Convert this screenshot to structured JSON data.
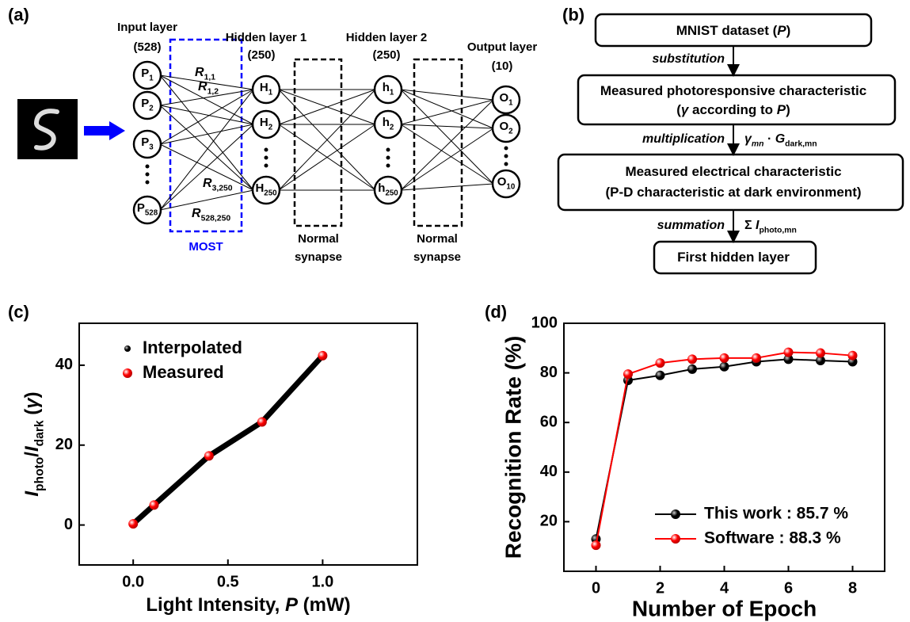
{
  "panel_a": {
    "label": "(a)",
    "layers": [
      {
        "name": "Input layer",
        "size": "(528)"
      },
      {
        "name": "Hidden layer 1",
        "size": "(250)"
      },
      {
        "name": "Hidden layer 2",
        "size": "(250)"
      },
      {
        "name": "Output layer",
        "size": "(10)"
      }
    ],
    "input_nodes": [
      [
        {
          "text": "P"
        },
        {
          "text": "1",
          "sub": true
        }
      ],
      [
        {
          "text": "P"
        },
        {
          "text": "2",
          "sub": true
        }
      ],
      [
        {
          "text": "P"
        },
        {
          "text": "3",
          "sub": true
        }
      ],
      [
        {
          "text": "P"
        },
        {
          "text": "528",
          "sub": true
        }
      ]
    ],
    "hidden1_nodes": [
      [
        {
          "text": "H"
        },
        {
          "text": "1",
          "sub": true
        }
      ],
      [
        {
          "text": "H"
        },
        {
          "text": "2",
          "sub": true
        }
      ],
      [
        {
          "text": "H"
        },
        {
          "text": "250",
          "sub": true
        }
      ]
    ],
    "hidden2_nodes": [
      [
        {
          "text": "h"
        },
        {
          "text": "1",
          "sub": true
        }
      ],
      [
        {
          "text": "h"
        },
        {
          "text": "2",
          "sub": true
        }
      ],
      [
        {
          "text": "h"
        },
        {
          "text": "250",
          "sub": true
        }
      ]
    ],
    "output_nodes": [
      [
        {
          "text": "O"
        },
        {
          "text": "1",
          "sub": true
        }
      ],
      [
        {
          "text": "O"
        },
        {
          "text": "2",
          "sub": true
        }
      ],
      [
        {
          "text": "O"
        },
        {
          "text": "10",
          "sub": true
        }
      ]
    ],
    "weights": [
      [
        {
          "text": "R",
          "italic": true
        },
        {
          "text": "1,1",
          "sub": true
        }
      ],
      [
        {
          "text": "R",
          "italic": true
        },
        {
          "text": "1,2",
          "sub": true
        }
      ],
      [
        {
          "text": "R",
          "italic": true
        },
        {
          "text": "3,250",
          "sub": true
        }
      ],
      [
        {
          "text": "R",
          "italic": true
        },
        {
          "text": "528,250",
          "sub": true
        }
      ]
    ],
    "most_label": "MOST",
    "synapse_labels": [
      [
        "Normal",
        "synapse"
      ],
      [
        "Normal",
        "synapse"
      ]
    ]
  },
  "panel_b": {
    "label": "(b)",
    "steps": [
      [
        [
          {
            "text": "MNIST dataset ("
          },
          {
            "text": "P",
            "italic": true
          },
          {
            "text": ")"
          }
        ]
      ],
      [
        [
          {
            "text": "Measured photoresponsive characteristic"
          }
        ],
        [
          {
            "text": "("
          },
          {
            "text": "γ",
            "italic": true
          },
          {
            "text": " according to "
          },
          {
            "text": "P",
            "italic": true
          },
          {
            "text": ")"
          }
        ]
      ],
      [
        [
          {
            "text": "Measured electrical characteristic"
          }
        ],
        [
          {
            "text": "(P-D characteristic at dark environment)"
          }
        ]
      ],
      [
        [
          {
            "text": "First hidden layer"
          }
        ]
      ]
    ],
    "arrows": [
      {
        "label": "substitution"
      },
      {
        "label": "multiplication",
        "formula": [
          {
            "text": "γ",
            "italic": true
          },
          {
            "text": "mn",
            "sub": true,
            "italic": true
          },
          {
            "text": " · "
          },
          {
            "text": "G",
            "italic": true
          },
          {
            "text": "dark,mn",
            "sub": true
          }
        ]
      },
      {
        "label": "summation",
        "formula": [
          {
            "text": "Σ "
          },
          {
            "text": "I",
            "italic": true
          },
          {
            "text": "photo,mn",
            "sub": true
          }
        ]
      }
    ]
  },
  "chart_data": [
    {
      "type": "line",
      "title": "(c)",
      "x": [
        0,
        0.11,
        0.4,
        0.68,
        1.0
      ],
      "series": [
        {
          "name": "Interpolated",
          "color": "#000000",
          "line": true,
          "values": [
            0.3,
            5,
            17.3,
            25.8,
            42.4
          ]
        },
        {
          "name": "Measured",
          "color": "#ff0000",
          "line": false,
          "values": [
            0.3,
            5,
            17.3,
            25.8,
            42.4
          ]
        }
      ],
      "xlabel": [
        {
          "text": "Light Intensity, "
        },
        {
          "text": "P",
          "italic": true
        },
        {
          "text": " (mW)"
        }
      ],
      "ylabel": [
        {
          "text": "I",
          "italic": true
        },
        {
          "text": "photo",
          "sub": true
        },
        {
          "text": "/"
        },
        {
          "text": "I",
          "italic": true
        },
        {
          "text": "dark",
          "sub": true
        },
        {
          "text": " ("
        },
        {
          "text": "γ",
          "italic": true
        },
        {
          "text": ")"
        }
      ],
      "xlim": [
        -0.285,
        1.5
      ],
      "ylim": [
        -10,
        50.5
      ],
      "xticks": [
        {
          "value": 0,
          "label": "0.0"
        },
        0.5,
        {
          "value": 1,
          "label": "1.0"
        }
      ],
      "yticks": [
        0,
        20,
        40
      ],
      "legend": "upper left"
    },
    {
      "type": "line",
      "title": "(d)",
      "x": [
        0,
        1,
        2,
        3,
        4,
        5,
        6,
        7,
        8
      ],
      "series": [
        {
          "name": "This work : 85.7 %",
          "color": "#000000",
          "line": true,
          "values": [
            13,
            77,
            79,
            81.5,
            82.5,
            84.5,
            85.5,
            85,
            84.5
          ]
        },
        {
          "name": "Software : 88.3 %",
          "color": "#ff0000",
          "line": true,
          "values": [
            10.5,
            79.5,
            84,
            85.5,
            86,
            86,
            88.3,
            88,
            87
          ]
        }
      ],
      "xlabel": "Number of Epoch",
      "ylabel": "Recognition Rate (%)",
      "xlim": [
        -1,
        9
      ],
      "ylim": [
        0,
        100
      ],
      "xticks": [
        0,
        2,
        4,
        6,
        8
      ],
      "yticks": [
        20,
        40,
        60,
        80,
        100
      ],
      "legend": "lower right"
    }
  ]
}
